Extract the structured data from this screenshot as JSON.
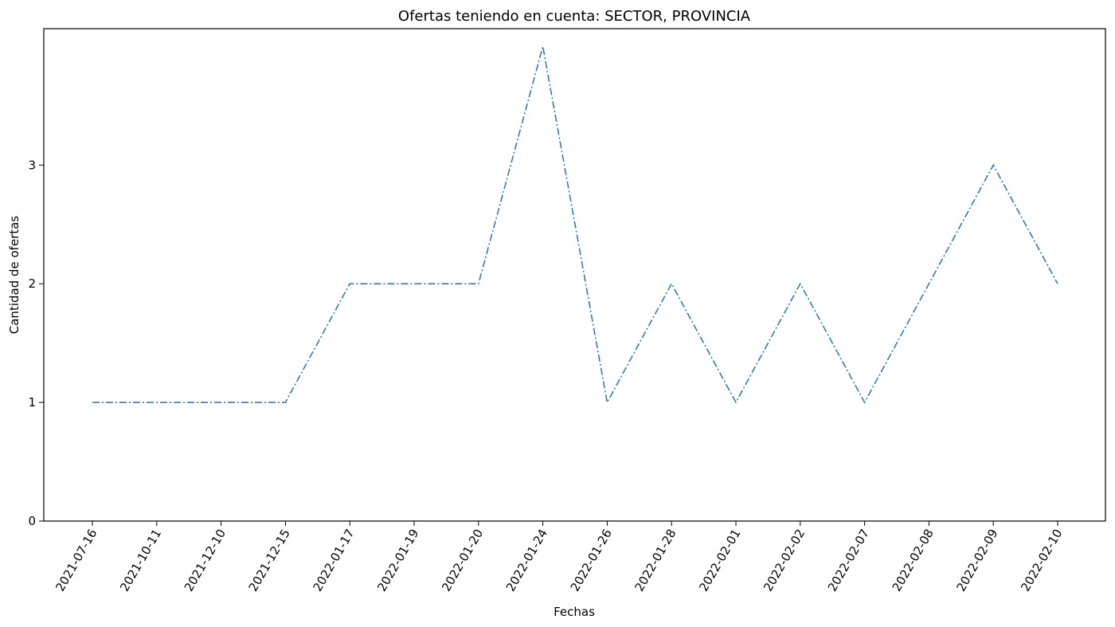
{
  "chart_data": {
    "type": "line",
    "title": "Ofertas teniendo en cuenta: SECTOR, PROVINCIA",
    "xlabel": "Fechas",
    "ylabel": "Cantidad de ofertas",
    "categories": [
      "2021-07-16",
      "2021-10-11",
      "2021-12-10",
      "2021-12-15",
      "2022-01-17",
      "2022-01-19",
      "2022-01-20",
      "2022-01-24",
      "2022-01-26",
      "2022-01-28",
      "2022-02-01",
      "2022-02-02",
      "2022-02-07",
      "2022-02-08",
      "2022-02-09",
      "2022-02-10"
    ],
    "series": [
      {
        "values": [
          1,
          1,
          1,
          1,
          2,
          2,
          2,
          4,
          1,
          2,
          1,
          2,
          1,
          2,
          3,
          2
        ],
        "color": "#1f77b4",
        "linestyle": "dashdot"
      }
    ],
    "yticks": [
      "0",
      "1",
      "2",
      "3"
    ],
    "ylim": [
      0,
      4.15
    ],
    "grid": false,
    "legend": "none"
  }
}
